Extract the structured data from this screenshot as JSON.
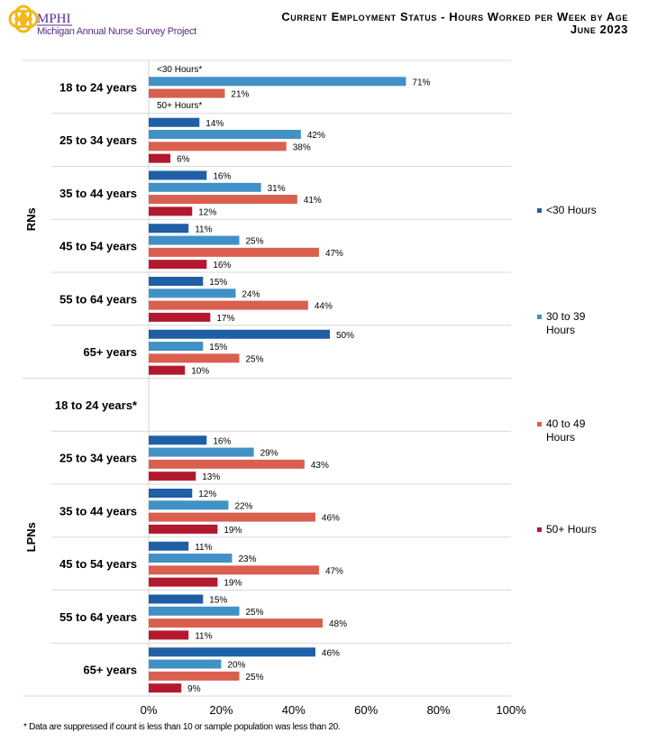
{
  "header": {
    "logo_text": "MPHI",
    "project": "Michigan Annual Nurse Survey Project",
    "title": "Current Employment Status - Hours Worked per Week by Age",
    "subtitle": "June 2023"
  },
  "footnote": "* Data are suppressed if count is less than 10 or sample population was less than 20.",
  "chart_data": {
    "type": "bar",
    "orientation": "horizontal",
    "xlim": [
      0,
      100
    ],
    "x_ticks": [
      "0%",
      "20%",
      "40%",
      "60%",
      "80%",
      "100%"
    ],
    "legend_position": "right",
    "series": [
      {
        "name": "<30 Hours",
        "color": "#1f5fa6"
      },
      {
        "name": "30 to 39 Hours",
        "color": "#4191c6"
      },
      {
        "name": "40 to 49 Hours",
        "color": "#d95f4f"
      },
      {
        "name": "50+ Hours",
        "color": "#b3192e"
      }
    ],
    "groups": [
      {
        "name": "RNs",
        "categories": [
          {
            "label": "18 to 24 years",
            "values": [
              null,
              71,
              21,
              null
            ],
            "suppressed_notes": [
              "<30 Hours*",
              "50+ Hours*"
            ]
          },
          {
            "label": "25 to 34 years",
            "values": [
              14,
              42,
              38,
              6
            ]
          },
          {
            "label": "35 to 44 years",
            "values": [
              16,
              31,
              41,
              12
            ]
          },
          {
            "label": "45 to 54 years",
            "values": [
              11,
              25,
              47,
              16
            ]
          },
          {
            "label": "55 to 64 years",
            "values": [
              15,
              24,
              44,
              17
            ]
          },
          {
            "label": "65+ years",
            "values": [
              50,
              15,
              25,
              10
            ]
          }
        ]
      },
      {
        "name": "LPNs",
        "categories": [
          {
            "label": "18 to 24 years*",
            "values": [
              null,
              null,
              null,
              null
            ]
          },
          {
            "label": "25 to 34 years",
            "values": [
              16,
              29,
              43,
              13
            ]
          },
          {
            "label": "35 to 44 years",
            "values": [
              12,
              22,
              46,
              19
            ]
          },
          {
            "label": "45 to 54 years",
            "values": [
              11,
              23,
              47,
              19
            ]
          },
          {
            "label": "55 to 64 years",
            "values": [
              15,
              25,
              48,
              11
            ]
          },
          {
            "label": "65+ years",
            "values": [
              46,
              20,
              25,
              9
            ]
          }
        ]
      }
    ]
  }
}
